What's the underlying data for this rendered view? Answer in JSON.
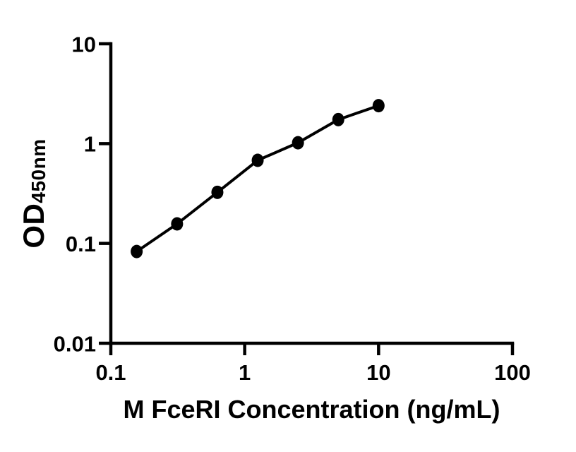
{
  "figure": {
    "background_color": "#ffffff",
    "ink_color": "#000000"
  },
  "chart_data": {
    "type": "line",
    "title": "",
    "xlabel": "M FceRI Concentration (ng/mL)",
    "ylabel_main": "OD",
    "ylabel_subscript": "450nm",
    "xscale": "log",
    "yscale": "log",
    "xlim": [
      0.1,
      100
    ],
    "ylim": [
      0.01,
      10
    ],
    "x_tick_values": [
      0.1,
      1,
      10,
      100
    ],
    "x_tick_labels": [
      "0.1",
      "1",
      "10",
      "100"
    ],
    "y_tick_values": [
      10,
      1,
      0.1,
      0.01
    ],
    "y_tick_labels": [
      "10",
      "1",
      "0.1",
      "0.01"
    ],
    "grid": false,
    "legend_position": "none",
    "series": [
      {
        "marker": "filled-circle",
        "line_color": "#000000",
        "marker_color": "#000000",
        "x": [
          0.156,
          0.3125,
          0.625,
          1.25,
          2.5,
          5,
          10
        ],
        "y": [
          0.083,
          0.157,
          0.325,
          0.68,
          1.02,
          1.74,
          2.4
        ]
      }
    ]
  }
}
